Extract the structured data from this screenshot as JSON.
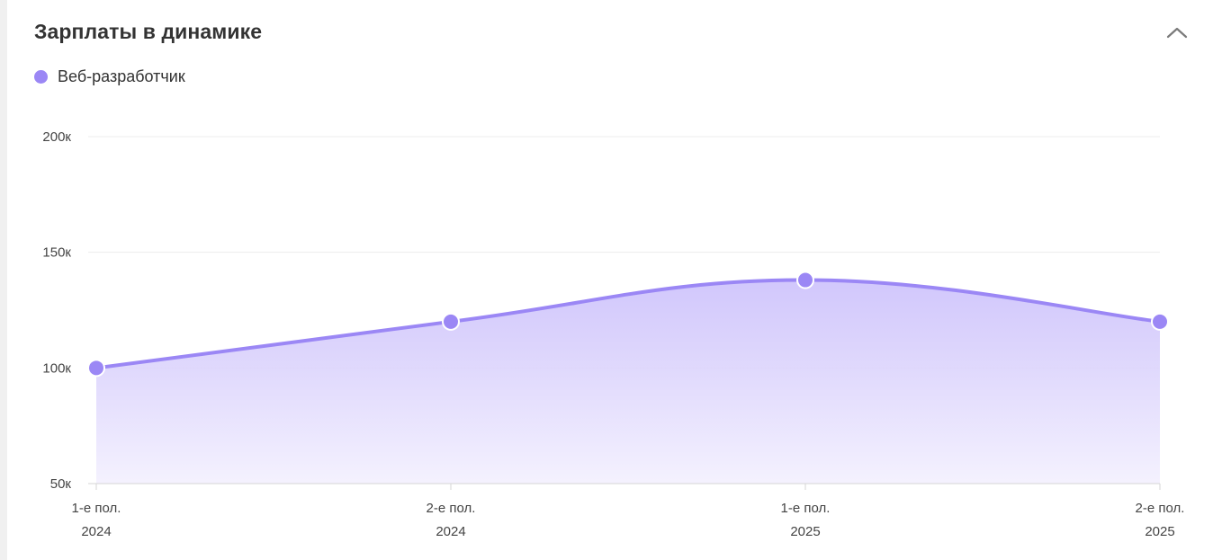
{
  "widget": {
    "title": "Зарплаты в динамике",
    "collapse_icon": "chevron-up-icon"
  },
  "colors": {
    "accent": "#9b87f5",
    "fill_top": "#c9bdfb",
    "fill_bottom": "#f3f0fe",
    "grid": "#ececec",
    "axis": "#d6d6d6"
  },
  "chart_data": {
    "type": "area",
    "title": "",
    "xlabel": "",
    "ylabel": "",
    "categories": [
      [
        "1-е пол.",
        "2024"
      ],
      [
        "2-е пол.",
        "2024"
      ],
      [
        "1-е пол.",
        "2025"
      ],
      [
        "2-е пол.",
        "2025"
      ]
    ],
    "series": [
      {
        "name": "Веб-разработчик",
        "values": [
          100000,
          120000,
          138000,
          120000
        ]
      }
    ],
    "ylim": [
      50000,
      200000
    ],
    "yticks": [
      {
        "value": 50000,
        "label": "50к"
      },
      {
        "value": 100000,
        "label": "100к"
      },
      {
        "value": 150000,
        "label": "150к"
      },
      {
        "value": 200000,
        "label": "200к"
      }
    ],
    "grid": true,
    "legend_position": "top-left"
  }
}
